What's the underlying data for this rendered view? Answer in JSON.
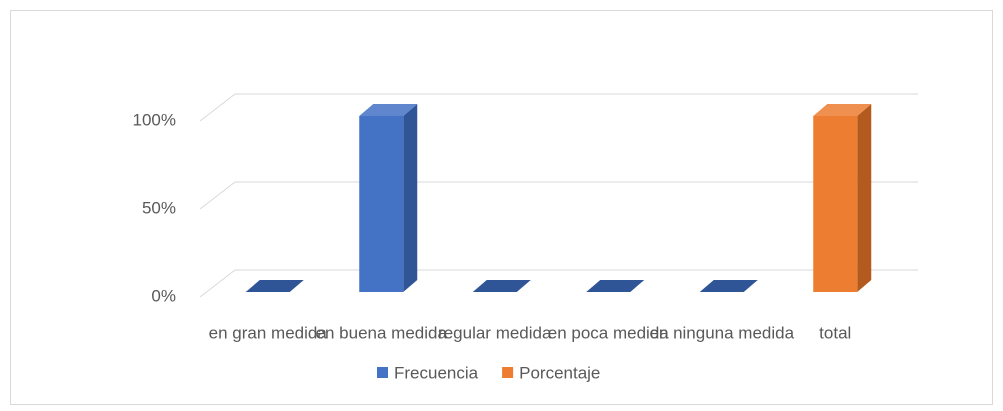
{
  "chart_data": {
    "type": "bar3d",
    "categories": [
      "en gran medida",
      "en buena medida",
      "regular medida",
      "en poca medida",
      "en ninguna medida",
      "total"
    ],
    "series": [
      {
        "name": "Frecuencia",
        "color": "#4472c4",
        "side": "#2f5597",
        "values": [
          0,
          100,
          0,
          0,
          0,
          null
        ]
      },
      {
        "name": "Porcentaje",
        "color": "#ed7d31",
        "side": "#b35a1f",
        "values": [
          null,
          null,
          null,
          null,
          null,
          100
        ]
      }
    ],
    "ylim": [
      0,
      100
    ],
    "yticks": [
      {
        "value": 0,
        "label": "0%"
      },
      {
        "value": 50,
        "label": "50%"
      },
      {
        "value": 100,
        "label": "100%"
      }
    ],
    "grid": true,
    "legend": "bottom"
  }
}
